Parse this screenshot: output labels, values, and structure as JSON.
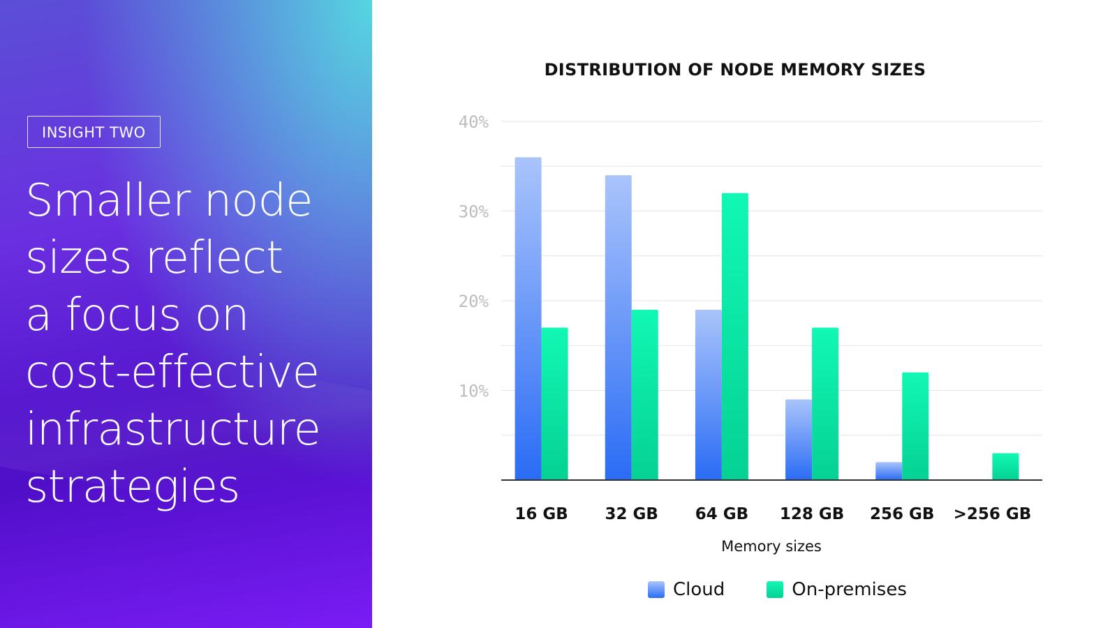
{
  "slide": {
    "tag": "INSIGHT TWO",
    "headline_lines": [
      "Smaller node",
      "sizes reflect",
      "a focus on",
      "cost-effective",
      "infrastructure",
      "strategies"
    ]
  },
  "colors": {
    "cloud_top": "#aac4fb",
    "cloud_bottom": "#2a6cf5",
    "onprem_top": "#11f8b4",
    "onprem_bottom": "#05d194",
    "grid": "#e3e3e3",
    "axis": "#333333",
    "tick_label": "#bdbdbd"
  },
  "chart_data": {
    "type": "bar",
    "title": "DISTRIBUTION OF NODE MEMORY SIZES",
    "xlabel": "Memory sizes",
    "ylabel": "",
    "categories": [
      "16 GB",
      "32 GB",
      "64 GB",
      "128 GB",
      "256 GB",
      ">256 GB"
    ],
    "series": [
      {
        "name": "Cloud",
        "values": [
          36,
          34,
          19,
          9,
          2,
          0
        ]
      },
      {
        "name": "On-premises",
        "values": [
          17,
          19,
          32,
          17,
          12,
          3
        ]
      }
    ],
    "ylim": [
      0,
      40
    ],
    "yticks": [
      10,
      20,
      30,
      40
    ],
    "ytick_labels": [
      "10%",
      "20%",
      "30%",
      "40%"
    ],
    "grid": true,
    "legend": "bottom"
  }
}
